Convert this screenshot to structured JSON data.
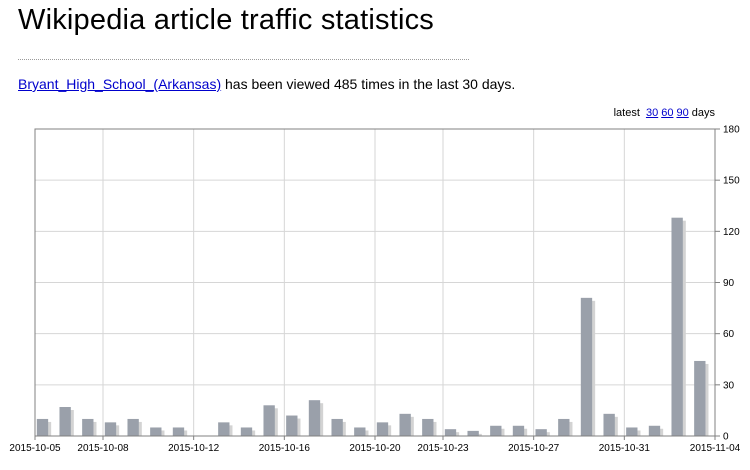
{
  "page": {
    "title": "Wikipedia article traffic statistics"
  },
  "summary": {
    "article_link": "Bryant_High_School_(Arkansas)",
    "text": " has been viewed 485 times in the last 30 days."
  },
  "range": {
    "prefix": "latest ",
    "options": [
      "30",
      "60",
      "90"
    ],
    "suffix": " days"
  },
  "colors": {
    "bar": "#9aa0aa",
    "bar_shadow": "#d3d3d3",
    "grid": "#d6d6d6",
    "axis": "#808080"
  },
  "chart_data": {
    "type": "bar",
    "categories": [
      "2015-10-05",
      "2015-10-06",
      "2015-10-07",
      "2015-10-08",
      "2015-10-09",
      "2015-10-10",
      "2015-10-11",
      "2015-10-12",
      "2015-10-13",
      "2015-10-14",
      "2015-10-15",
      "2015-10-16",
      "2015-10-17",
      "2015-10-18",
      "2015-10-19",
      "2015-10-20",
      "2015-10-21",
      "2015-10-22",
      "2015-10-23",
      "2015-10-24",
      "2015-10-25",
      "2015-10-26",
      "2015-10-27",
      "2015-10-28",
      "2015-10-29",
      "2015-10-30",
      "2015-10-31",
      "2015-11-01",
      "2015-11-02",
      "2015-11-03",
      "2015-11-04"
    ],
    "values": [
      10,
      17,
      10,
      8,
      10,
      5,
      5,
      0,
      8,
      5,
      18,
      12,
      21,
      10,
      5,
      8,
      13,
      10,
      4,
      3,
      6,
      6,
      4,
      10,
      81,
      13,
      5,
      6,
      128,
      44,
      0
    ],
    "x_tick_labels": [
      "2015-10-05",
      "2015-10-08",
      "2015-10-12",
      "2015-10-16",
      "2015-10-20",
      "2015-10-23",
      "2015-10-27",
      "2015-10-31",
      "2015-11-04"
    ],
    "y_ticks": [
      0,
      30,
      60,
      90,
      120,
      150,
      180
    ],
    "ylim": [
      0,
      180
    ],
    "grid": true,
    "y_axis_side": "right",
    "title": "",
    "xlabel": "",
    "ylabel": ""
  }
}
